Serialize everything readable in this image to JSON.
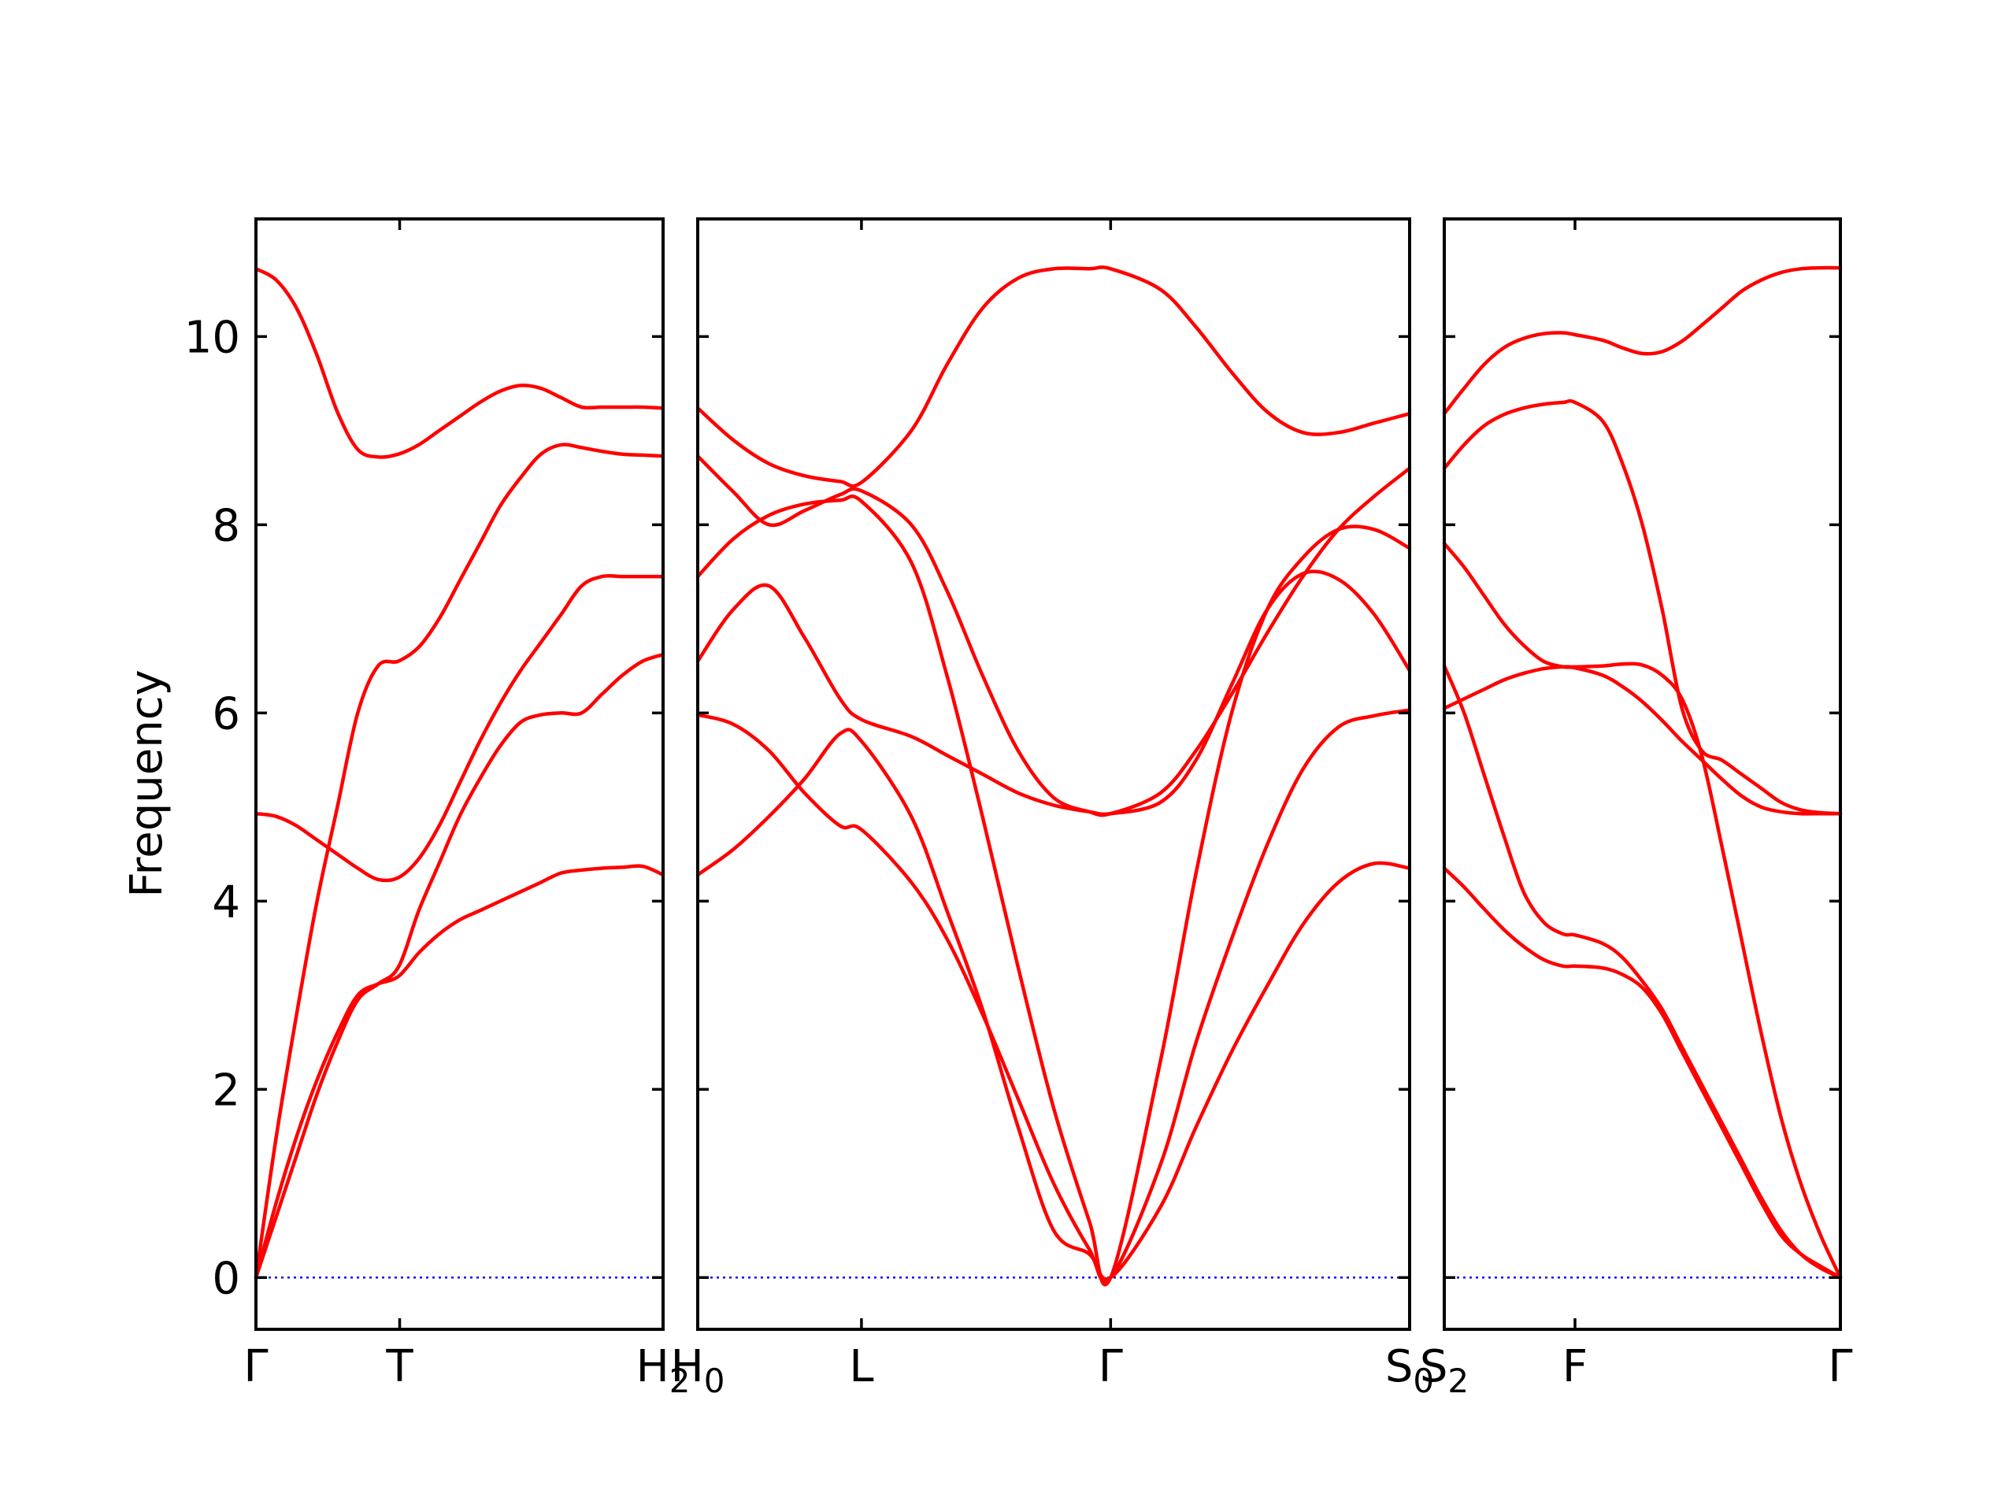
{
  "chart_data": {
    "type": "line",
    "ylabel": "Frequency",
    "ylim": [
      -0.55,
      11.25
    ],
    "yticks": [
      0,
      2,
      4,
      6,
      8,
      10
    ],
    "grid": false,
    "colors": {
      "bands": "#ff0000",
      "zero_line": "#0000ff",
      "axes": "#000000"
    },
    "panels": [
      {
        "xticks": [
          {
            "label": "Γ",
            "sub": ""
          },
          {
            "label": "T",
            "sub": ""
          },
          {
            "label": "H",
            "sub": "2"
          }
        ],
        "series": [
          {
            "x": [
              0,
              0.05,
              0.1,
              0.15,
              0.2,
              0.25,
              0.3,
              0.35,
              0.4,
              0.45,
              0.5,
              0.55,
              0.6,
              0.65,
              0.7,
              0.75,
              0.8,
              0.85,
              0.9,
              0.95,
              1
            ],
            "y": [
              0,
              0.8,
              1.5,
              2.1,
              2.6,
              3.0,
              3.12,
              3.2,
              3.45,
              3.65,
              3.8,
              3.9,
              4.0,
              4.1,
              4.2,
              4.3,
              4.33,
              4.35,
              4.36,
              4.37,
              4.28
            ]
          },
          {
            "x": [
              0,
              0.05,
              0.1,
              0.15,
              0.2,
              0.25,
              0.3,
              0.35,
              0.4,
              0.45,
              0.5,
              0.55,
              0.6,
              0.65,
              0.7,
              0.75,
              0.8,
              0.85,
              0.9,
              0.95,
              1
            ],
            "y": [
              0,
              1.5,
              2.8,
              4.0,
              5.0,
              6.0,
              6.5,
              6.55,
              6.7,
              7.0,
              7.4,
              7.8,
              8.2,
              8.5,
              8.75,
              8.85,
              8.82,
              8.78,
              8.75,
              8.74,
              8.73
            ]
          },
          {
            "x": [
              0,
              0.05,
              0.1,
              0.15,
              0.2,
              0.25,
              0.3,
              0.35,
              0.4,
              0.45,
              0.5,
              0.55,
              0.6,
              0.65,
              0.7,
              0.75,
              0.8,
              0.85,
              0.9,
              0.95,
              1
            ],
            "y": [
              4.93,
              4.9,
              4.8,
              4.65,
              4.5,
              4.35,
              4.23,
              4.25,
              4.45,
              4.8,
              5.25,
              5.7,
              6.1,
              6.45,
              6.75,
              7.05,
              7.35,
              7.45,
              7.45,
              7.45,
              7.45
            ]
          },
          {
            "x": [
              0,
              0.05,
              0.1,
              0.15,
              0.2,
              0.25,
              0.3,
              0.35,
              0.4,
              0.45,
              0.5,
              0.55,
              0.6,
              0.65,
              0.7,
              0.75,
              0.8,
              0.85,
              0.9,
              0.95,
              1
            ],
            "y": [
              0,
              0.65,
              1.3,
              1.95,
              2.5,
              2.95,
              3.12,
              3.3,
              3.9,
              4.4,
              4.9,
              5.3,
              5.65,
              5.9,
              5.98,
              6.0,
              6.0,
              6.2,
              6.4,
              6.55,
              6.62
            ]
          },
          {
            "x": [
              0,
              0.05,
              0.1,
              0.15,
              0.2,
              0.25,
              0.3,
              0.35,
              0.4,
              0.45,
              0.5,
              0.55,
              0.6,
              0.65,
              0.7,
              0.75,
              0.8,
              0.85,
              0.9,
              0.95,
              1
            ],
            "y": [
              10.72,
              10.6,
              10.3,
              9.8,
              9.2,
              8.8,
              8.72,
              8.75,
              8.85,
              9.0,
              9.15,
              9.3,
              9.42,
              9.48,
              9.45,
              9.35,
              9.25,
              9.25,
              9.25,
              9.25,
              9.24
            ]
          }
        ]
      },
      {
        "xticks": [
          {
            "label": "H",
            "sub": "0"
          },
          {
            "label": "L",
            "sub": ""
          },
          {
            "label": "Γ",
            "sub": ""
          },
          {
            "label": "S",
            "sub": "0"
          }
        ],
        "series": [
          {
            "x": [
              0,
              0.05,
              0.1,
              0.15,
              0.2,
              0.23,
              0.3,
              0.35,
              0.4,
              0.45,
              0.5,
              0.55,
              0.58,
              0.65,
              0.7,
              0.75,
              0.8,
              0.85,
              0.9,
              0.95,
              1
            ],
            "y": [
              4.28,
              4.55,
              4.9,
              5.3,
              5.78,
              5.7,
              4.9,
              3.9,
              2.85,
              1.6,
              0.5,
              0.25,
              0,
              0.75,
              1.6,
              2.4,
              3.1,
              3.75,
              4.2,
              4.4,
              4.35
            ]
          },
          {
            "x": [
              0,
              0.05,
              0.1,
              0.15,
              0.2,
              0.23,
              0.3,
              0.35,
              0.4,
              0.45,
              0.5,
              0.55,
              0.58,
              0.65,
              0.7,
              0.75,
              0.8,
              0.85,
              0.9,
              0.95,
              1
            ],
            "y": [
              5.98,
              5.88,
              5.6,
              5.15,
              4.8,
              4.76,
              4.2,
              3.6,
              2.8,
              1.9,
              1.0,
              0.3,
              0,
              1.2,
              2.5,
              3.6,
              4.6,
              5.4,
              5.85,
              5.97,
              6.03
            ]
          },
          {
            "x": [
              0,
              0.05,
              0.1,
              0.15,
              0.2,
              0.23,
              0.3,
              0.35,
              0.4,
              0.45,
              0.5,
              0.55,
              0.58,
              0.65,
              0.7,
              0.75,
              0.8,
              0.85,
              0.9,
              0.95,
              1
            ],
            "y": [
              6.55,
              7.1,
              7.35,
              6.8,
              6.15,
              5.93,
              5.75,
              5.55,
              5.35,
              5.15,
              5.02,
              4.95,
              4.93,
              5.05,
              5.5,
              6.3,
              7.1,
              7.48,
              7.42,
              7.05,
              6.45
            ]
          },
          {
            "x": [
              0,
              0.05,
              0.1,
              0.15,
              0.2,
              0.23,
              0.3,
              0.35,
              0.4,
              0.45,
              0.5,
              0.55,
              0.58,
              0.65,
              0.7,
              0.75,
              0.8,
              0.85,
              0.9,
              0.95,
              1
            ],
            "y": [
              7.45,
              7.85,
              8.1,
              8.22,
              8.26,
              8.25,
              7.6,
              6.4,
              4.9,
              3.3,
              1.8,
              0.6,
              0,
              2.3,
              4.3,
              6.0,
              7.1,
              7.65,
              7.95,
              7.95,
              7.75
            ]
          },
          {
            "x": [
              0,
              0.05,
              0.1,
              0.15,
              0.2,
              0.23,
              0.3,
              0.35,
              0.4,
              0.45,
              0.5,
              0.55,
              0.58,
              0.65,
              0.7,
              0.75,
              0.8,
              0.85,
              0.9,
              0.95,
              1
            ],
            "y": [
              8.73,
              8.35,
              8.0,
              8.15,
              8.32,
              8.36,
              8.0,
              7.3,
              6.4,
              5.6,
              5.1,
              4.95,
              4.93,
              5.15,
              5.6,
              6.2,
              6.85,
              7.45,
              7.95,
              8.3,
              8.6
            ]
          },
          {
            "x": [
              0,
              0.05,
              0.1,
              0.15,
              0.2,
              0.23,
              0.3,
              0.35,
              0.4,
              0.45,
              0.5,
              0.55,
              0.58,
              0.65,
              0.7,
              0.75,
              0.8,
              0.85,
              0.9,
              0.95,
              1
            ],
            "y": [
              9.24,
              8.9,
              8.65,
              8.52,
              8.46,
              8.45,
              9.0,
              9.7,
              10.3,
              10.62,
              10.72,
              10.72,
              10.72,
              10.5,
              10.1,
              9.62,
              9.2,
              8.98,
              8.98,
              9.08,
              9.18
            ]
          }
        ]
      },
      {
        "xticks": [
          {
            "label": "S",
            "sub": "2"
          },
          {
            "label": "F",
            "sub": ""
          },
          {
            "label": "Γ",
            "sub": ""
          }
        ],
        "series": [
          {
            "x": [
              0,
              0.05,
              0.1,
              0.15,
              0.2,
              0.25,
              0.3,
              0.33,
              0.4,
              0.45,
              0.5,
              0.55,
              0.6,
              0.65,
              0.7,
              0.75,
              0.8,
              0.85,
              0.9,
              0.95,
              1
            ],
            "y": [
              4.35,
              4.15,
              3.92,
              3.7,
              3.52,
              3.38,
              3.31,
              3.31,
              3.29,
              3.22,
              3.08,
              2.8,
              2.4,
              2.0,
              1.6,
              1.2,
              0.8,
              0.45,
              0.25,
              0.12,
              0
            ]
          },
          {
            "x": [
              0,
              0.05,
              0.1,
              0.15,
              0.2,
              0.25,
              0.3,
              0.33,
              0.4,
              0.45,
              0.5,
              0.55,
              0.6,
              0.65,
              0.7,
              0.75,
              0.8,
              0.85,
              0.9,
              0.95,
              1
            ],
            "y": [
              6.5,
              6.0,
              5.35,
              4.7,
              4.1,
              3.78,
              3.65,
              3.64,
              3.55,
              3.4,
              3.15,
              2.85,
              2.45,
              2.05,
              1.65,
              1.25,
              0.85,
              0.5,
              0.25,
              0.1,
              0
            ]
          },
          {
            "x": [
              0,
              0.05,
              0.1,
              0.15,
              0.2,
              0.25,
              0.3,
              0.33,
              0.4,
              0.45,
              0.5,
              0.55,
              0.6,
              0.65,
              0.7,
              0.75,
              0.8,
              0.85,
              0.9,
              0.95,
              1
            ],
            "y": [
              6.05,
              6.15,
              6.25,
              6.35,
              6.42,
              6.47,
              6.49,
              6.49,
              6.5,
              6.52,
              6.51,
              6.4,
              6.15,
              5.55,
              4.6,
              3.6,
              2.6,
              1.7,
              1.0,
              0.45,
              0
            ]
          },
          {
            "x": [
              0,
              0.05,
              0.1,
              0.15,
              0.2,
              0.25,
              0.3,
              0.33,
              0.4,
              0.45,
              0.5,
              0.55,
              0.6,
              0.65,
              0.7,
              0.75,
              0.8,
              0.85,
              0.9,
              0.95,
              1
            ],
            "y": [
              7.8,
              7.55,
              7.25,
              6.95,
              6.72,
              6.55,
              6.49,
              6.48,
              6.4,
              6.28,
              6.12,
              5.92,
              5.7,
              5.5,
              5.3,
              5.12,
              5.0,
              4.95,
              4.93,
              4.93,
              4.93
            ]
          },
          {
            "x": [
              0,
              0.05,
              0.1,
              0.15,
              0.2,
              0.25,
              0.3,
              0.33,
              0.4,
              0.45,
              0.5,
              0.55,
              0.6,
              0.65,
              0.7,
              0.75,
              0.8,
              0.85,
              0.9,
              0.95,
              1
            ],
            "y": [
              8.6,
              8.85,
              9.05,
              9.17,
              9.24,
              9.28,
              9.3,
              9.3,
              9.1,
              8.65,
              8.0,
              7.1,
              6.05,
              5.6,
              5.5,
              5.35,
              5.2,
              5.05,
              4.97,
              4.94,
              4.93
            ]
          },
          {
            "x": [
              0,
              0.05,
              0.1,
              0.15,
              0.2,
              0.25,
              0.3,
              0.33,
              0.4,
              0.45,
              0.5,
              0.55,
              0.6,
              0.65,
              0.7,
              0.75,
              0.8,
              0.85,
              0.9,
              0.95,
              1
            ],
            "y": [
              9.18,
              9.45,
              9.7,
              9.88,
              9.98,
              10.03,
              10.04,
              10.02,
              9.96,
              9.88,
              9.82,
              9.84,
              9.95,
              10.12,
              10.3,
              10.48,
              10.6,
              10.68,
              10.72,
              10.73,
              10.73
            ]
          }
        ]
      }
    ]
  }
}
